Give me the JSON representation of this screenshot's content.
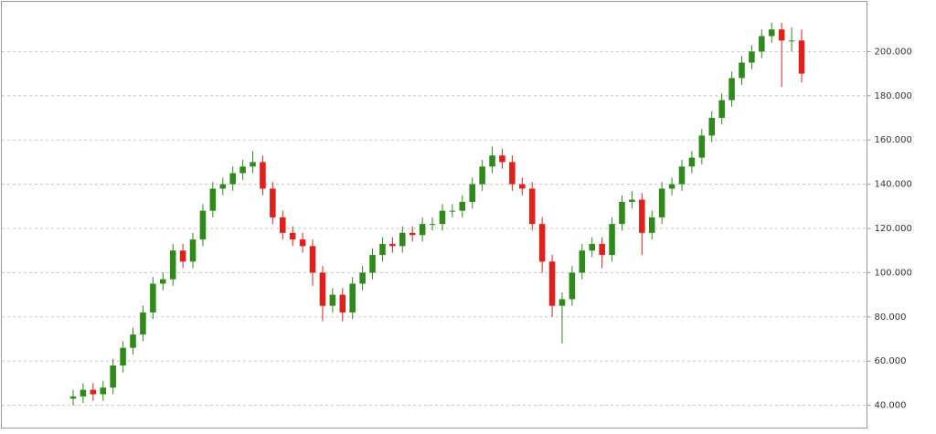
{
  "chart_data": {
    "type": "candlestick",
    "up_color": "#2e8b1a",
    "down_color": "#e0201b",
    "ylim": [
      29.7,
      222.7
    ],
    "yticks": [
      {
        "value": 40,
        "label": "40.000"
      },
      {
        "value": 60,
        "label": "60.000"
      },
      {
        "value": 80,
        "label": "80.000"
      },
      {
        "value": 100,
        "label": "100.000"
      },
      {
        "value": 120,
        "label": "120.000"
      },
      {
        "value": 140,
        "label": "140.000"
      },
      {
        "value": 160,
        "label": "160.000"
      },
      {
        "value": 180,
        "label": "180.000"
      },
      {
        "value": 200,
        "label": "200.000"
      }
    ],
    "grid": true,
    "open": [
      43,
      44,
      47,
      45,
      48,
      58,
      66,
      72,
      82,
      95,
      97,
      110,
      105,
      115,
      128,
      138,
      140,
      145,
      148,
      150,
      138,
      125,
      118,
      115,
      112,
      100,
      85,
      90,
      82,
      95,
      100,
      108,
      113,
      112,
      118,
      117,
      122,
      122,
      128,
      128,
      132,
      140,
      148,
      153,
      150,
      140,
      138,
      122,
      105,
      85,
      88,
      100,
      110,
      113,
      108,
      122,
      132,
      133,
      118,
      125,
      138,
      140,
      148,
      152,
      162,
      170,
      178,
      188,
      195,
      200,
      207,
      210,
      205,
      205
    ],
    "high": [
      47,
      50,
      50,
      51,
      61,
      69,
      75,
      85,
      98,
      100,
      113,
      113,
      118,
      131,
      141,
      143,
      148,
      151,
      155,
      153,
      141,
      128,
      121,
      118,
      115,
      103,
      93,
      93,
      98,
      103,
      111,
      116,
      116,
      121,
      121,
      125,
      125,
      131,
      131,
      135,
      143,
      151,
      157,
      156,
      153,
      143,
      141,
      125,
      108,
      91,
      103,
      113,
      116,
      116,
      125,
      135,
      137,
      136,
      128,
      141,
      143,
      151,
      155,
      165,
      173,
      181,
      191,
      198,
      203,
      210,
      213,
      213,
      211,
      210
    ],
    "low": [
      40,
      41,
      42,
      42,
      45,
      55,
      63,
      69,
      79,
      92,
      94,
      102,
      102,
      112,
      125,
      135,
      137,
      142,
      145,
      135,
      122,
      115,
      112,
      109,
      94,
      78,
      82,
      78,
      79,
      92,
      97,
      105,
      109,
      109,
      114,
      114,
      119,
      119,
      125,
      125,
      129,
      137,
      145,
      147,
      137,
      135,
      119,
      100,
      80,
      68,
      85,
      97,
      107,
      102,
      105,
      119,
      129,
      108,
      115,
      122,
      135,
      137,
      145,
      149,
      159,
      167,
      175,
      185,
      192,
      197,
      204,
      184,
      200,
      186
    ],
    "close": [
      44,
      47,
      45,
      48,
      58,
      66,
      72,
      82,
      95,
      97,
      110,
      105,
      115,
      128,
      138,
      140,
      145,
      148,
      150,
      138,
      125,
      118,
      115,
      112,
      100,
      85,
      90,
      82,
      95,
      100,
      108,
      113,
      112,
      118,
      117,
      122,
      122,
      128,
      128,
      132,
      140,
      148,
      153,
      150,
      140,
      138,
      122,
      105,
      85,
      88,
      100,
      110,
      113,
      108,
      122,
      132,
      133,
      118,
      125,
      138,
      140,
      148,
      152,
      162,
      170,
      178,
      188,
      195,
      200,
      207,
      210,
      205,
      205,
      190
    ]
  }
}
